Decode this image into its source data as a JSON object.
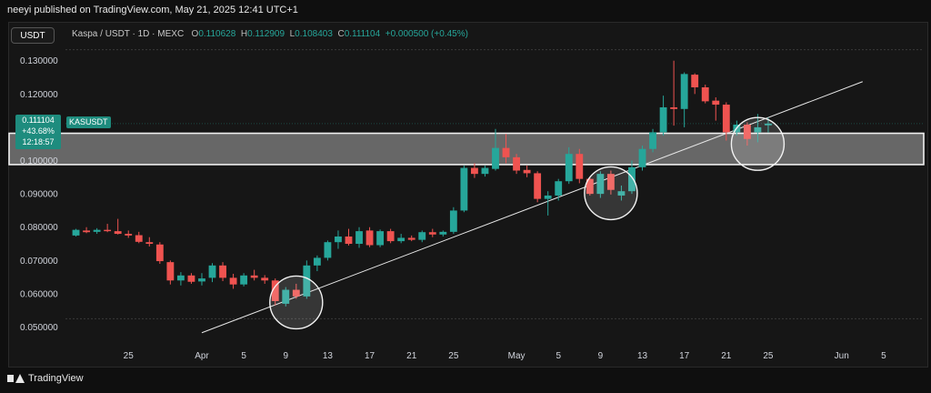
{
  "header": {
    "published": "neeyi published on TradingView.com, May 21, 2025 12:41 UTC+1"
  },
  "toolbar": {
    "symbol_badge": "USDT"
  },
  "legend": {
    "pair": "Kaspa / USDT · 1D · MEXC",
    "o_label": "O",
    "o_value": "0.110628",
    "h_label": "H",
    "h_value": "0.112909",
    "l_label": "L",
    "l_value": "0.108403",
    "c_label": "C",
    "c_value": "0.111104",
    "change": "+0.000500 (+0.45%)"
  },
  "price_tag": {
    "price": "0.111104",
    "change_pct": "+43.68%",
    "countdown": "12:18:57",
    "ticker": "KASUSDT"
  },
  "footer": {
    "brand": "TradingView"
  },
  "colors": {
    "up": "#26a69a",
    "down": "#ef5350",
    "background": "#161616",
    "zone": "#d9d9d9"
  },
  "chart_data": {
    "type": "candlestick",
    "y_tick_labels": [
      "0.130000",
      "0.120000",
      "0.110000",
      "0.100000",
      "0.090000",
      "0.080000",
      "0.070000",
      "0.060000",
      "0.050000"
    ],
    "y_ticks": [
      0.13,
      0.12,
      0.11,
      0.1,
      0.09,
      0.08,
      0.07,
      0.06,
      0.05
    ],
    "ylim": [
      0.0455,
      0.1373
    ],
    "x_tick_labels": [
      "25",
      "Apr",
      "5",
      "9",
      "13",
      "17",
      "21",
      "25",
      "May",
      "5",
      "9",
      "13",
      "17",
      "21",
      "25",
      "Jun",
      "5"
    ],
    "x_tick_dates": [
      "2025-03-25",
      "2025-04-01",
      "2025-04-05",
      "2025-04-09",
      "2025-04-13",
      "2025-04-17",
      "2025-04-21",
      "2025-04-25",
      "2025-05-01",
      "2025-05-05",
      "2025-05-09",
      "2025-05-13",
      "2025-05-17",
      "2025-05-21",
      "2025-05-25",
      "2025-06-01",
      "2025-06-05"
    ],
    "xlim": [
      "2025-03-19",
      "2025-06-09"
    ],
    "candles": [
      {
        "date": "2025-03-20",
        "o": 0.0775,
        "h": 0.0795,
        "l": 0.0772,
        "c": 0.0792
      },
      {
        "date": "2025-03-21",
        "o": 0.079,
        "h": 0.08,
        "l": 0.0782,
        "c": 0.0785
      },
      {
        "date": "2025-03-22",
        "o": 0.0786,
        "h": 0.0797,
        "l": 0.078,
        "c": 0.0792
      },
      {
        "date": "2025-03-23",
        "o": 0.0792,
        "h": 0.081,
        "l": 0.0785,
        "c": 0.0788
      },
      {
        "date": "2025-03-24",
        "o": 0.0788,
        "h": 0.0825,
        "l": 0.0778,
        "c": 0.078
      },
      {
        "date": "2025-03-25",
        "o": 0.078,
        "h": 0.079,
        "l": 0.0768,
        "c": 0.0775
      },
      {
        "date": "2025-03-26",
        "o": 0.0776,
        "h": 0.0786,
        "l": 0.0752,
        "c": 0.0756
      },
      {
        "date": "2025-03-27",
        "o": 0.0755,
        "h": 0.077,
        "l": 0.0742,
        "c": 0.075
      },
      {
        "date": "2025-03-28",
        "o": 0.0748,
        "h": 0.0755,
        "l": 0.069,
        "c": 0.0698
      },
      {
        "date": "2025-03-29",
        "o": 0.0695,
        "h": 0.07,
        "l": 0.0628,
        "c": 0.064
      },
      {
        "date": "2025-03-30",
        "o": 0.064,
        "h": 0.0665,
        "l": 0.0625,
        "c": 0.0655
      },
      {
        "date": "2025-03-31",
        "o": 0.0655,
        "h": 0.0662,
        "l": 0.063,
        "c": 0.0636
      },
      {
        "date": "2025-04-01",
        "o": 0.0637,
        "h": 0.0662,
        "l": 0.0625,
        "c": 0.0646
      },
      {
        "date": "2025-04-02",
        "o": 0.0648,
        "h": 0.0692,
        "l": 0.0635,
        "c": 0.0685
      },
      {
        "date": "2025-04-03",
        "o": 0.0685,
        "h": 0.0695,
        "l": 0.0638,
        "c": 0.0648
      },
      {
        "date": "2025-04-04",
        "o": 0.0648,
        "h": 0.066,
        "l": 0.0615,
        "c": 0.0628
      },
      {
        "date": "2025-04-05",
        "o": 0.0628,
        "h": 0.0662,
        "l": 0.0622,
        "c": 0.0655
      },
      {
        "date": "2025-04-06",
        "o": 0.0655,
        "h": 0.0672,
        "l": 0.064,
        "c": 0.0648
      },
      {
        "date": "2025-04-07",
        "o": 0.0648,
        "h": 0.0656,
        "l": 0.063,
        "c": 0.064
      },
      {
        "date": "2025-04-08",
        "o": 0.064,
        "h": 0.0646,
        "l": 0.0565,
        "c": 0.0578
      },
      {
        "date": "2025-04-09",
        "o": 0.057,
        "h": 0.062,
        "l": 0.0562,
        "c": 0.0612
      },
      {
        "date": "2025-04-10",
        "o": 0.0612,
        "h": 0.063,
        "l": 0.0585,
        "c": 0.0592
      },
      {
        "date": "2025-04-11",
        "o": 0.0592,
        "h": 0.07,
        "l": 0.0585,
        "c": 0.0685
      },
      {
        "date": "2025-04-12",
        "o": 0.0685,
        "h": 0.0715,
        "l": 0.0668,
        "c": 0.0708
      },
      {
        "date": "2025-04-13",
        "o": 0.0708,
        "h": 0.076,
        "l": 0.07,
        "c": 0.0755
      },
      {
        "date": "2025-04-14",
        "o": 0.0755,
        "h": 0.079,
        "l": 0.0735,
        "c": 0.0772
      },
      {
        "date": "2025-04-15",
        "o": 0.0772,
        "h": 0.0795,
        "l": 0.0745,
        "c": 0.075
      },
      {
        "date": "2025-04-16",
        "o": 0.075,
        "h": 0.08,
        "l": 0.0738,
        "c": 0.0788
      },
      {
        "date": "2025-04-17",
        "o": 0.079,
        "h": 0.08,
        "l": 0.074,
        "c": 0.0746
      },
      {
        "date": "2025-04-18",
        "o": 0.0746,
        "h": 0.0793,
        "l": 0.074,
        "c": 0.0788
      },
      {
        "date": "2025-04-19",
        "o": 0.0788,
        "h": 0.0795,
        "l": 0.0752,
        "c": 0.0758
      },
      {
        "date": "2025-04-20",
        "o": 0.0758,
        "h": 0.078,
        "l": 0.0752,
        "c": 0.0768
      },
      {
        "date": "2025-04-21",
        "o": 0.0768,
        "h": 0.0775,
        "l": 0.0758,
        "c": 0.0762
      },
      {
        "date": "2025-04-22",
        "o": 0.0762,
        "h": 0.079,
        "l": 0.0755,
        "c": 0.0785
      },
      {
        "date": "2025-04-23",
        "o": 0.0785,
        "h": 0.0795,
        "l": 0.077,
        "c": 0.0778
      },
      {
        "date": "2025-04-24",
        "o": 0.0778,
        "h": 0.079,
        "l": 0.0772,
        "c": 0.0786
      },
      {
        "date": "2025-04-25",
        "o": 0.0786,
        "h": 0.086,
        "l": 0.078,
        "c": 0.085
      },
      {
        "date": "2025-04-26",
        "o": 0.085,
        "h": 0.0985,
        "l": 0.0845,
        "c": 0.0978
      },
      {
        "date": "2025-04-27",
        "o": 0.0978,
        "h": 0.0992,
        "l": 0.0948,
        "c": 0.096
      },
      {
        "date": "2025-04-28",
        "o": 0.096,
        "h": 0.0985,
        "l": 0.0952,
        "c": 0.0978
      },
      {
        "date": "2025-04-29",
        "o": 0.0975,
        "h": 0.1095,
        "l": 0.097,
        "c": 0.1038
      },
      {
        "date": "2025-04-30",
        "o": 0.1038,
        "h": 0.108,
        "l": 0.0992,
        "c": 0.101
      },
      {
        "date": "2025-05-01",
        "o": 0.101,
        "h": 0.102,
        "l": 0.096,
        "c": 0.097
      },
      {
        "date": "2025-05-02",
        "o": 0.0972,
        "h": 0.0985,
        "l": 0.095,
        "c": 0.0962
      },
      {
        "date": "2025-05-03",
        "o": 0.0962,
        "h": 0.0968,
        "l": 0.0875,
        "c": 0.0885
      },
      {
        "date": "2025-05-04",
        "o": 0.0885,
        "h": 0.0908,
        "l": 0.0835,
        "c": 0.0895
      },
      {
        "date": "2025-05-05",
        "o": 0.0895,
        "h": 0.0945,
        "l": 0.088,
        "c": 0.0938
      },
      {
        "date": "2025-05-06",
        "o": 0.0938,
        "h": 0.104,
        "l": 0.093,
        "c": 0.102
      },
      {
        "date": "2025-05-07",
        "o": 0.102,
        "h": 0.1035,
        "l": 0.0932,
        "c": 0.0945
      },
      {
        "date": "2025-05-08",
        "o": 0.0945,
        "h": 0.095,
        "l": 0.0895,
        "c": 0.09
      },
      {
        "date": "2025-05-09",
        "o": 0.09,
        "h": 0.0968,
        "l": 0.0888,
        "c": 0.096
      },
      {
        "date": "2025-05-10",
        "o": 0.096,
        "h": 0.097,
        "l": 0.0898,
        "c": 0.0912
      },
      {
        "date": "2025-05-11",
        "o": 0.0895,
        "h": 0.0925,
        "l": 0.088,
        "c": 0.0908
      },
      {
        "date": "2025-05-12",
        "o": 0.0908,
        "h": 0.1,
        "l": 0.09,
        "c": 0.098
      },
      {
        "date": "2025-05-13",
        "o": 0.098,
        "h": 0.1045,
        "l": 0.097,
        "c": 0.1035
      },
      {
        "date": "2025-05-14",
        "o": 0.1035,
        "h": 0.1095,
        "l": 0.1025,
        "c": 0.1085
      },
      {
        "date": "2025-05-15",
        "o": 0.1085,
        "h": 0.1195,
        "l": 0.1075,
        "c": 0.116
      },
      {
        "date": "2025-05-16",
        "o": 0.116,
        "h": 0.13,
        "l": 0.1105,
        "c": 0.1155
      },
      {
        "date": "2025-05-17",
        "o": 0.1155,
        "h": 0.1265,
        "l": 0.11,
        "c": 0.126
      },
      {
        "date": "2025-05-18",
        "o": 0.1258,
        "h": 0.1262,
        "l": 0.12,
        "c": 0.122
      },
      {
        "date": "2025-05-19",
        "o": 0.122,
        "h": 0.1228,
        "l": 0.1172,
        "c": 0.1178
      },
      {
        "date": "2025-05-20",
        "o": 0.118,
        "h": 0.119,
        "l": 0.112,
        "c": 0.1168
      },
      {
        "date": "2025-05-21",
        "o": 0.1168,
        "h": 0.1175,
        "l": 0.106,
        "c": 0.1085
      },
      {
        "date": "2025-05-22",
        "o": 0.1085,
        "h": 0.112,
        "l": 0.1075,
        "c": 0.1108
      },
      {
        "date": "2025-05-23",
        "o": 0.1108,
        "h": 0.1115,
        "l": 0.1045,
        "c": 0.1065
      },
      {
        "date": "2025-05-24",
        "o": 0.1085,
        "h": 0.114,
        "l": 0.1055,
        "c": 0.11
      },
      {
        "date": "2025-05-25",
        "o": 0.1106,
        "h": 0.1129,
        "l": 0.1084,
        "c": 0.1111
      }
    ],
    "horizontal_zone": {
      "top": 0.1082,
      "bottom": 0.0988
    },
    "trendline": {
      "start": {
        "date": "2025-04-01",
        "value": 0.0483
      },
      "end": {
        "date": "2025-06-03",
        "value": 0.1237
      }
    },
    "circles": [
      {
        "date": "2025-04-10",
        "value": 0.0574
      },
      {
        "date": "2025-05-10",
        "value": 0.0902
      },
      {
        "date": "2025-05-24",
        "value": 0.105
      }
    ],
    "current_price": 0.111104,
    "grid": "dashed horizontal at top and bottom"
  }
}
